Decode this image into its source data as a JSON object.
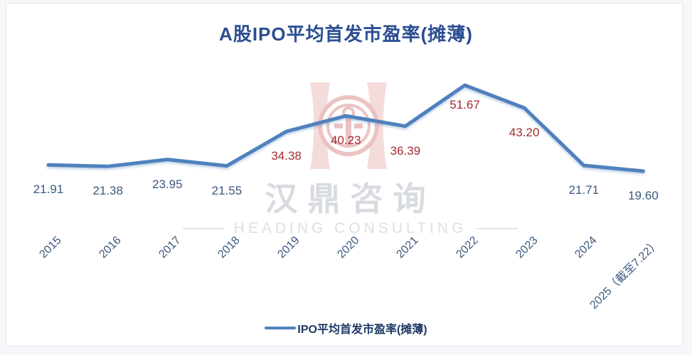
{
  "page": {
    "background": "#f5f7f9",
    "panel_border": "#dbe5ec",
    "panel_background": "#ffffff"
  },
  "title": {
    "text": "A股IPO平均首发市盈率(摊薄)",
    "color": "#2a4e91"
  },
  "watermark": {
    "logo_icon": "heading-h-logo",
    "cn_text": "汉鼎咨询",
    "en_text": "HEADING CONSULTING",
    "pink": "#f5dcdc",
    "pink_dark": "#ecc2c2",
    "gray": "#d8dce1"
  },
  "legend": {
    "label": "IPO平均首发市盈率(摊薄)",
    "line_color": "#4f81bd"
  },
  "chart_data": {
    "type": "line",
    "title": "A股IPO平均首发市盈率(摊薄)",
    "series_name": "IPO平均首发市盈率(摊薄)",
    "categories": [
      "2015",
      "2016",
      "2017",
      "2018",
      "2019",
      "2020",
      "2021",
      "2022",
      "2023",
      "2024",
      "2025（截至7.22）"
    ],
    "values": [
      21.91,
      21.38,
      23.95,
      21.55,
      34.38,
      40.23,
      36.39,
      51.67,
      43.2,
      21.71,
      19.6
    ],
    "value_label_decimals": 2,
    "line_color": "#4f81bd",
    "label_colors": [
      "#3a587f",
      "#3a587f",
      "#3a587f",
      "#3a587f",
      "#a62c31",
      "#a62c31",
      "#a62c31",
      "#a62c31",
      "#a62c31",
      "#3a587f",
      "#3a587f"
    ],
    "xlabel": "",
    "ylabel": "",
    "grid": false,
    "y_axis_shown": false,
    "legend_position": "bottom"
  }
}
